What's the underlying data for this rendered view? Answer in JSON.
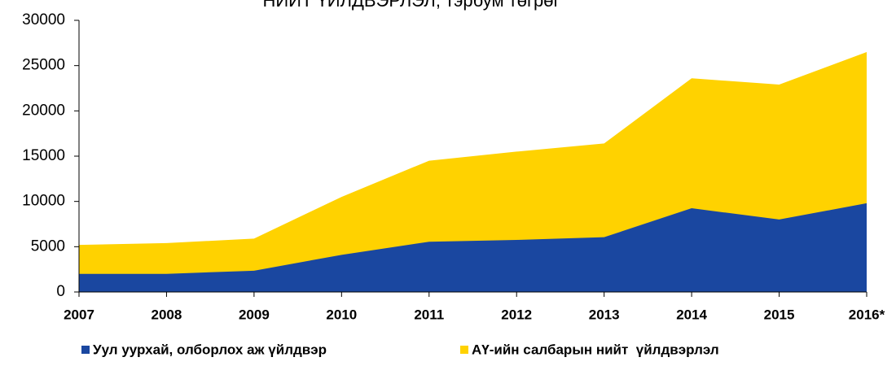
{
  "chart_data": {
    "type": "area",
    "title": "НИЙТ ҮЙЛДВЭРЛЭЛ, тэрбум төгрөг",
    "categories": [
      "2007",
      "2008",
      "2009",
      "2010",
      "2011",
      "2012",
      "2013",
      "2014",
      "2015",
      "2016*"
    ],
    "series": [
      {
        "name": "АҮ-ийн салбарын нийт  үйлдвэрлэл",
        "color": "#ffd200",
        "values": [
          5200,
          5400,
          5900,
          10500,
          14500,
          15500,
          16400,
          23600,
          22900,
          26500
        ]
      },
      {
        "name": "Уул уурхай, олборлох аж үйлдвэр",
        "color": "#1a47a0",
        "values": [
          2000,
          2000,
          2350,
          4100,
          5550,
          5750,
          6050,
          9250,
          8000,
          9800
        ]
      }
    ],
    "legend_order": [
      1,
      0
    ],
    "ylim": [
      0,
      30000
    ],
    "yticks": [
      0,
      5000,
      10000,
      15000,
      20000,
      25000,
      30000
    ]
  }
}
